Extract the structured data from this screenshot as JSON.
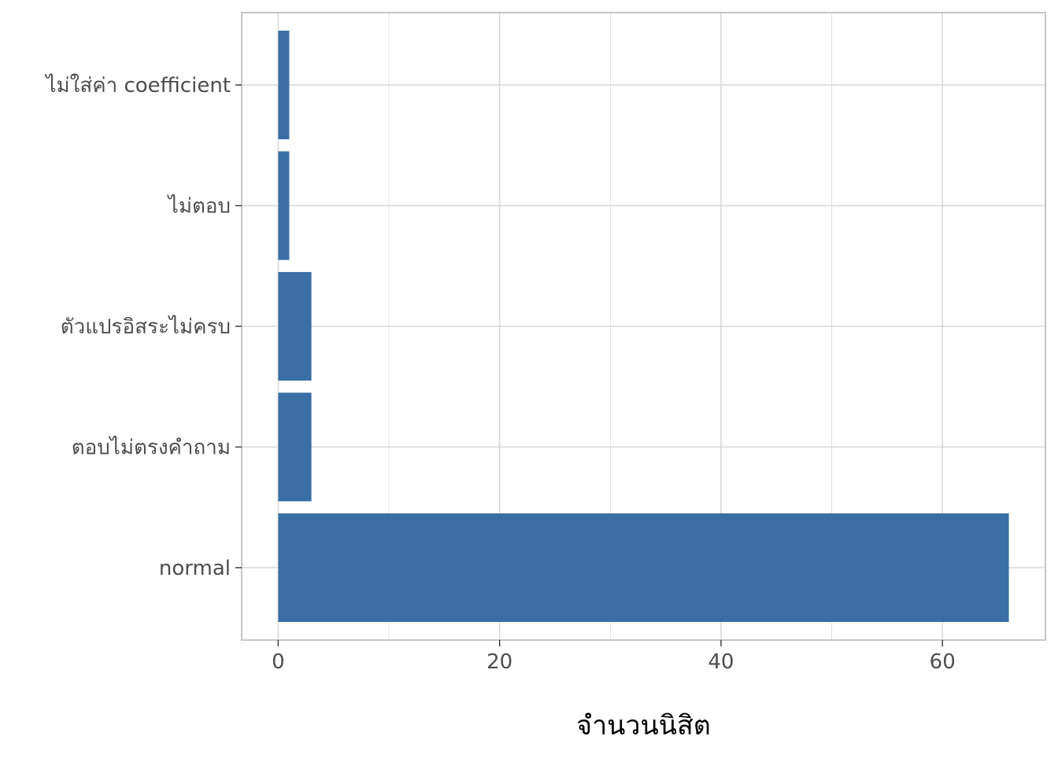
{
  "chart_data": {
    "type": "bar",
    "orientation": "horizontal",
    "categories": [
      "ไม่ใส่ค่า coefficient",
      "ไม่ตอบ",
      "ตัวแปรอิสระไม่ครบ",
      "ตอบไม่ตรงคำถาม",
      "normal"
    ],
    "values": [
      1,
      1,
      3,
      3,
      66
    ],
    "title": "",
    "xlabel": "จำนวนนิสิต",
    "ylabel": "",
    "xlim": [
      -3.3,
      69.3
    ],
    "xticks": [
      0,
      20,
      40,
      60
    ],
    "grid": true,
    "legend": "none",
    "bar_color": "#3A6EA5",
    "grid_color": "#D9D9D9",
    "panel_border_color": "#B3B3B3"
  }
}
